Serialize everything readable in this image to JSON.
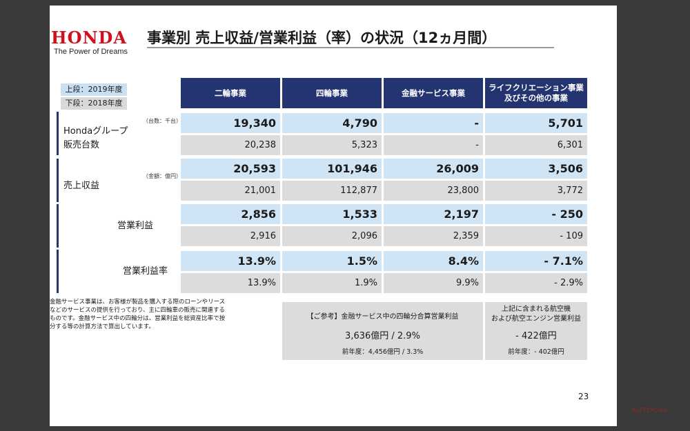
{
  "logo": {
    "word": "HONDA",
    "tagline": "The Power of Dreams"
  },
  "title": "事業別 売上収益/営業利益（率）の状況（12ヵ月間）",
  "legend": {
    "upper": "上段：2019年度",
    "lower": "下段：2018年度"
  },
  "columns": [
    "二輪事業",
    "四輪事業",
    "金融サービス事業",
    "ライフクリエーション事業\n及びその他の事業"
  ],
  "rows": [
    {
      "label": "Hondaグループ\n販売台数",
      "unit": "（台数：千台）",
      "current": [
        "19,340",
        "4,790",
        "-",
        "5,701"
      ],
      "previous": [
        "20,238",
        "5,323",
        "-",
        "6,301"
      ]
    },
    {
      "label": "売上収益",
      "unit": "（金額：億円）",
      "current": [
        "20,593",
        "101,946",
        "26,009",
        "3,506"
      ],
      "previous": [
        "21,001",
        "112,877",
        "23,800",
        "3,772"
      ]
    },
    {
      "label": "営業利益",
      "unit": "",
      "current": [
        "2,856",
        "1,533",
        "2,197",
        "- 250"
      ],
      "previous": [
        "2,916",
        "2,096",
        "2,359",
        "- 109"
      ]
    },
    {
      "label": "営業利益率",
      "unit": "",
      "current": [
        "13.9%",
        "1.5%",
        "8.4%",
        "- 7.1%"
      ],
      "previous": [
        "13.9%",
        "1.9%",
        "9.9%",
        "- 2.9%"
      ]
    }
  ],
  "note": "金融サービス事業は、お客様が製品を購入する際のローンやリースなどのサービスの提供を行っており、主に四輪車の販売に関連するものです。金融サービス中の四輪分は、営業利益を総資産比率で按分する等の計算方法で算出しています。",
  "reference_box": {
    "title": "【ご参考】金融サービス中の四輪分合算営業利益",
    "value": "3,636億円 / 2.9%",
    "prev": "前年度：4,456億円 / 3.3%"
  },
  "aviation_box": {
    "title": "上記に含まれる航空機\nおよび航空エンジン営業利益",
    "value": "- 422億円",
    "prev": "前年度：- 402億円"
  },
  "page_number": "23",
  "watermark": "AUTOCAR"
}
